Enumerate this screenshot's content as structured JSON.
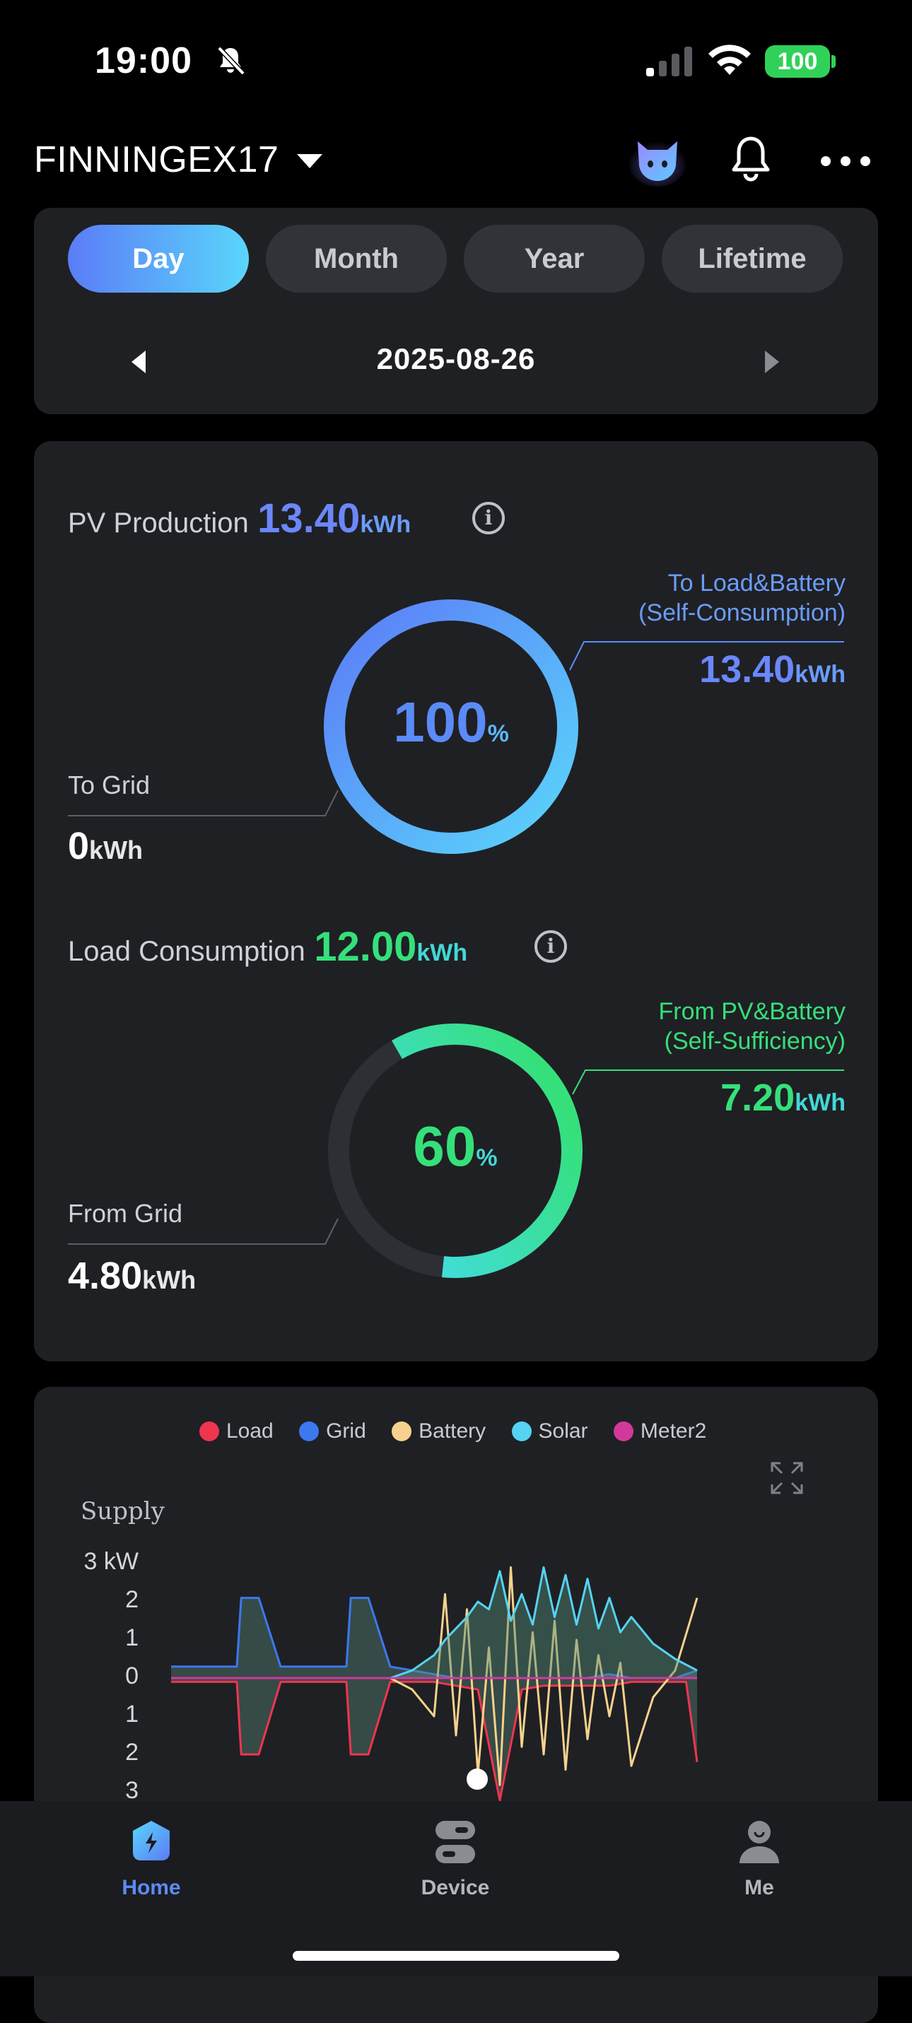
{
  "status_bar": {
    "time": "19:00",
    "battery": "100",
    "icons": [
      "bell-slash-icon",
      "cellular-signal-icon",
      "wifi-icon",
      "battery-icon"
    ]
  },
  "header": {
    "plant_name": "FINNINGEX17",
    "icons": [
      "chevron-down-icon",
      "cat-assistant-icon",
      "bell-icon",
      "more-icon"
    ]
  },
  "period_tabs": {
    "items": [
      {
        "label": "Day",
        "active": true
      },
      {
        "label": "Month",
        "active": false
      },
      {
        "label": "Year",
        "active": false
      },
      {
        "label": "Lifetime",
        "active": false
      }
    ],
    "date": "2025-08-26"
  },
  "pv_production": {
    "title": "PV Production",
    "value": "13.40",
    "unit": "kWh",
    "percent": "100",
    "percent_unit": "%",
    "percent_value": 1.0,
    "right_label_line1": "To Load&Battery",
    "right_label_line2": "(Self-Consumption)",
    "right_value": "13.40",
    "right_unit": "kWh",
    "left_label": "To Grid",
    "left_value": "0",
    "left_unit": "kWh",
    "colors": {
      "start": "#5ad6fb",
      "end": "#5b7cf7"
    }
  },
  "load_consumption": {
    "title": "Load Consumption",
    "value": "12.00",
    "unit": "kWh",
    "percent": "60",
    "percent_unit": "%",
    "percent_value": 0.6,
    "right_label_line1": "From PV&Battery",
    "right_label_line2": "(Self-Sufficiency)",
    "right_value": "7.20",
    "right_unit": "kWh",
    "left_label": "From Grid",
    "left_value": "4.80",
    "left_unit": "kWh",
    "colors": {
      "start": "#43dcec",
      "end": "#35e07a"
    }
  },
  "power_chart": {
    "expand_icon": "expand-icon",
    "legend": [
      {
        "name": "Load",
        "color": "#f0354f"
      },
      {
        "name": "Grid",
        "color": "#3c78f0"
      },
      {
        "name": "Battery",
        "color": "#f6d28c"
      },
      {
        "name": "Solar",
        "color": "#55d3f2"
      },
      {
        "name": "Meter2",
        "color": "#d3399b"
      }
    ],
    "supply_label": "Supply",
    "y_ticks": [
      "3 kW",
      "2",
      "1",
      "0",
      "1",
      "2",
      "3"
    ]
  },
  "chart_data": {
    "type": "line",
    "title": "",
    "ylabel": "Supply",
    "ylim": [
      -3,
      3
    ],
    "x_range": [
      0,
      24
    ],
    "series": [
      {
        "name": "Load",
        "x": [
          0,
          1,
          2,
          3,
          3.2,
          4,
          5,
          6,
          7,
          8,
          8.2,
          9,
          10,
          11,
          12,
          13,
          14,
          15,
          16,
          17,
          18,
          19,
          20,
          21,
          22,
          23,
          23.5,
          24
        ],
        "y": [
          -0.1,
          -0.1,
          -0.1,
          -0.1,
          -2.0,
          -2.0,
          -0.1,
          -0.1,
          -0.1,
          -0.1,
          -2.0,
          -2.0,
          -0.1,
          -0.1,
          -0.1,
          -0.2,
          -0.3,
          -3.2,
          -0.3,
          -0.2,
          -0.2,
          -0.2,
          -0.2,
          -0.1,
          -0.1,
          -0.1,
          -0.1,
          -2.2
        ]
      },
      {
        "name": "Grid",
        "x": [
          0,
          1,
          2,
          3,
          3.2,
          4,
          5,
          6,
          7,
          8,
          8.2,
          9,
          10,
          11,
          12,
          13,
          14,
          15,
          16,
          17,
          18,
          19,
          20,
          21,
          22,
          23,
          23.5,
          24
        ],
        "y": [
          0.3,
          0.3,
          0.3,
          0.3,
          2.1,
          2.1,
          0.3,
          0.3,
          0.3,
          0.3,
          2.1,
          2.1,
          0.3,
          0.2,
          0.1,
          0.0,
          0.0,
          0.0,
          0.0,
          0.0,
          0.0,
          0.0,
          0.1,
          0.0,
          0.0,
          0.0,
          0.1,
          0.2
        ]
      },
      {
        "name": "Battery",
        "x": [
          0,
          2,
          4,
          6,
          8,
          10,
          11,
          12,
          12.5,
          13,
          13.5,
          14,
          14.5,
          15,
          15.5,
          16,
          16.5,
          17,
          17.5,
          18,
          18.5,
          19,
          19.5,
          20,
          20.5,
          21,
          22,
          23,
          24
        ],
        "y": [
          0,
          0,
          0,
          0,
          0,
          0,
          -0.3,
          -1.0,
          2.2,
          -1.5,
          1.8,
          -2.5,
          0.8,
          -2.8,
          2.9,
          -1.8,
          1.2,
          -2.0,
          1.5,
          -2.4,
          1.0,
          -1.6,
          0.6,
          -1.0,
          0.4,
          -2.3,
          -0.5,
          0.2,
          2.1
        ]
      },
      {
        "name": "Solar",
        "x": [
          0,
          2,
          4,
          6,
          8,
          10,
          11,
          12,
          12.5,
          13,
          13.5,
          14,
          14.5,
          15,
          15.5,
          16,
          16.5,
          17,
          17.5,
          18,
          18.5,
          19,
          19.5,
          20,
          20.5,
          21,
          22,
          23,
          24
        ],
        "y": [
          0,
          0,
          0,
          0,
          0,
          0.0,
          0.2,
          0.6,
          1.0,
          1.3,
          1.6,
          2.0,
          1.8,
          2.8,
          1.5,
          2.2,
          1.4,
          2.9,
          1.6,
          2.7,
          1.4,
          2.6,
          1.3,
          2.1,
          1.2,
          1.6,
          0.9,
          0.5,
          0.2
        ]
      },
      {
        "name": "Meter2",
        "x": [
          0,
          24
        ],
        "y": [
          0.0,
          0.0
        ]
      }
    ]
  },
  "bottom_nav": {
    "items": [
      {
        "label": "Home",
        "icon": "home-bolt-icon",
        "active": true
      },
      {
        "label": "Device",
        "icon": "device-icon",
        "active": false
      },
      {
        "label": "Me",
        "icon": "person-icon",
        "active": false
      }
    ]
  }
}
